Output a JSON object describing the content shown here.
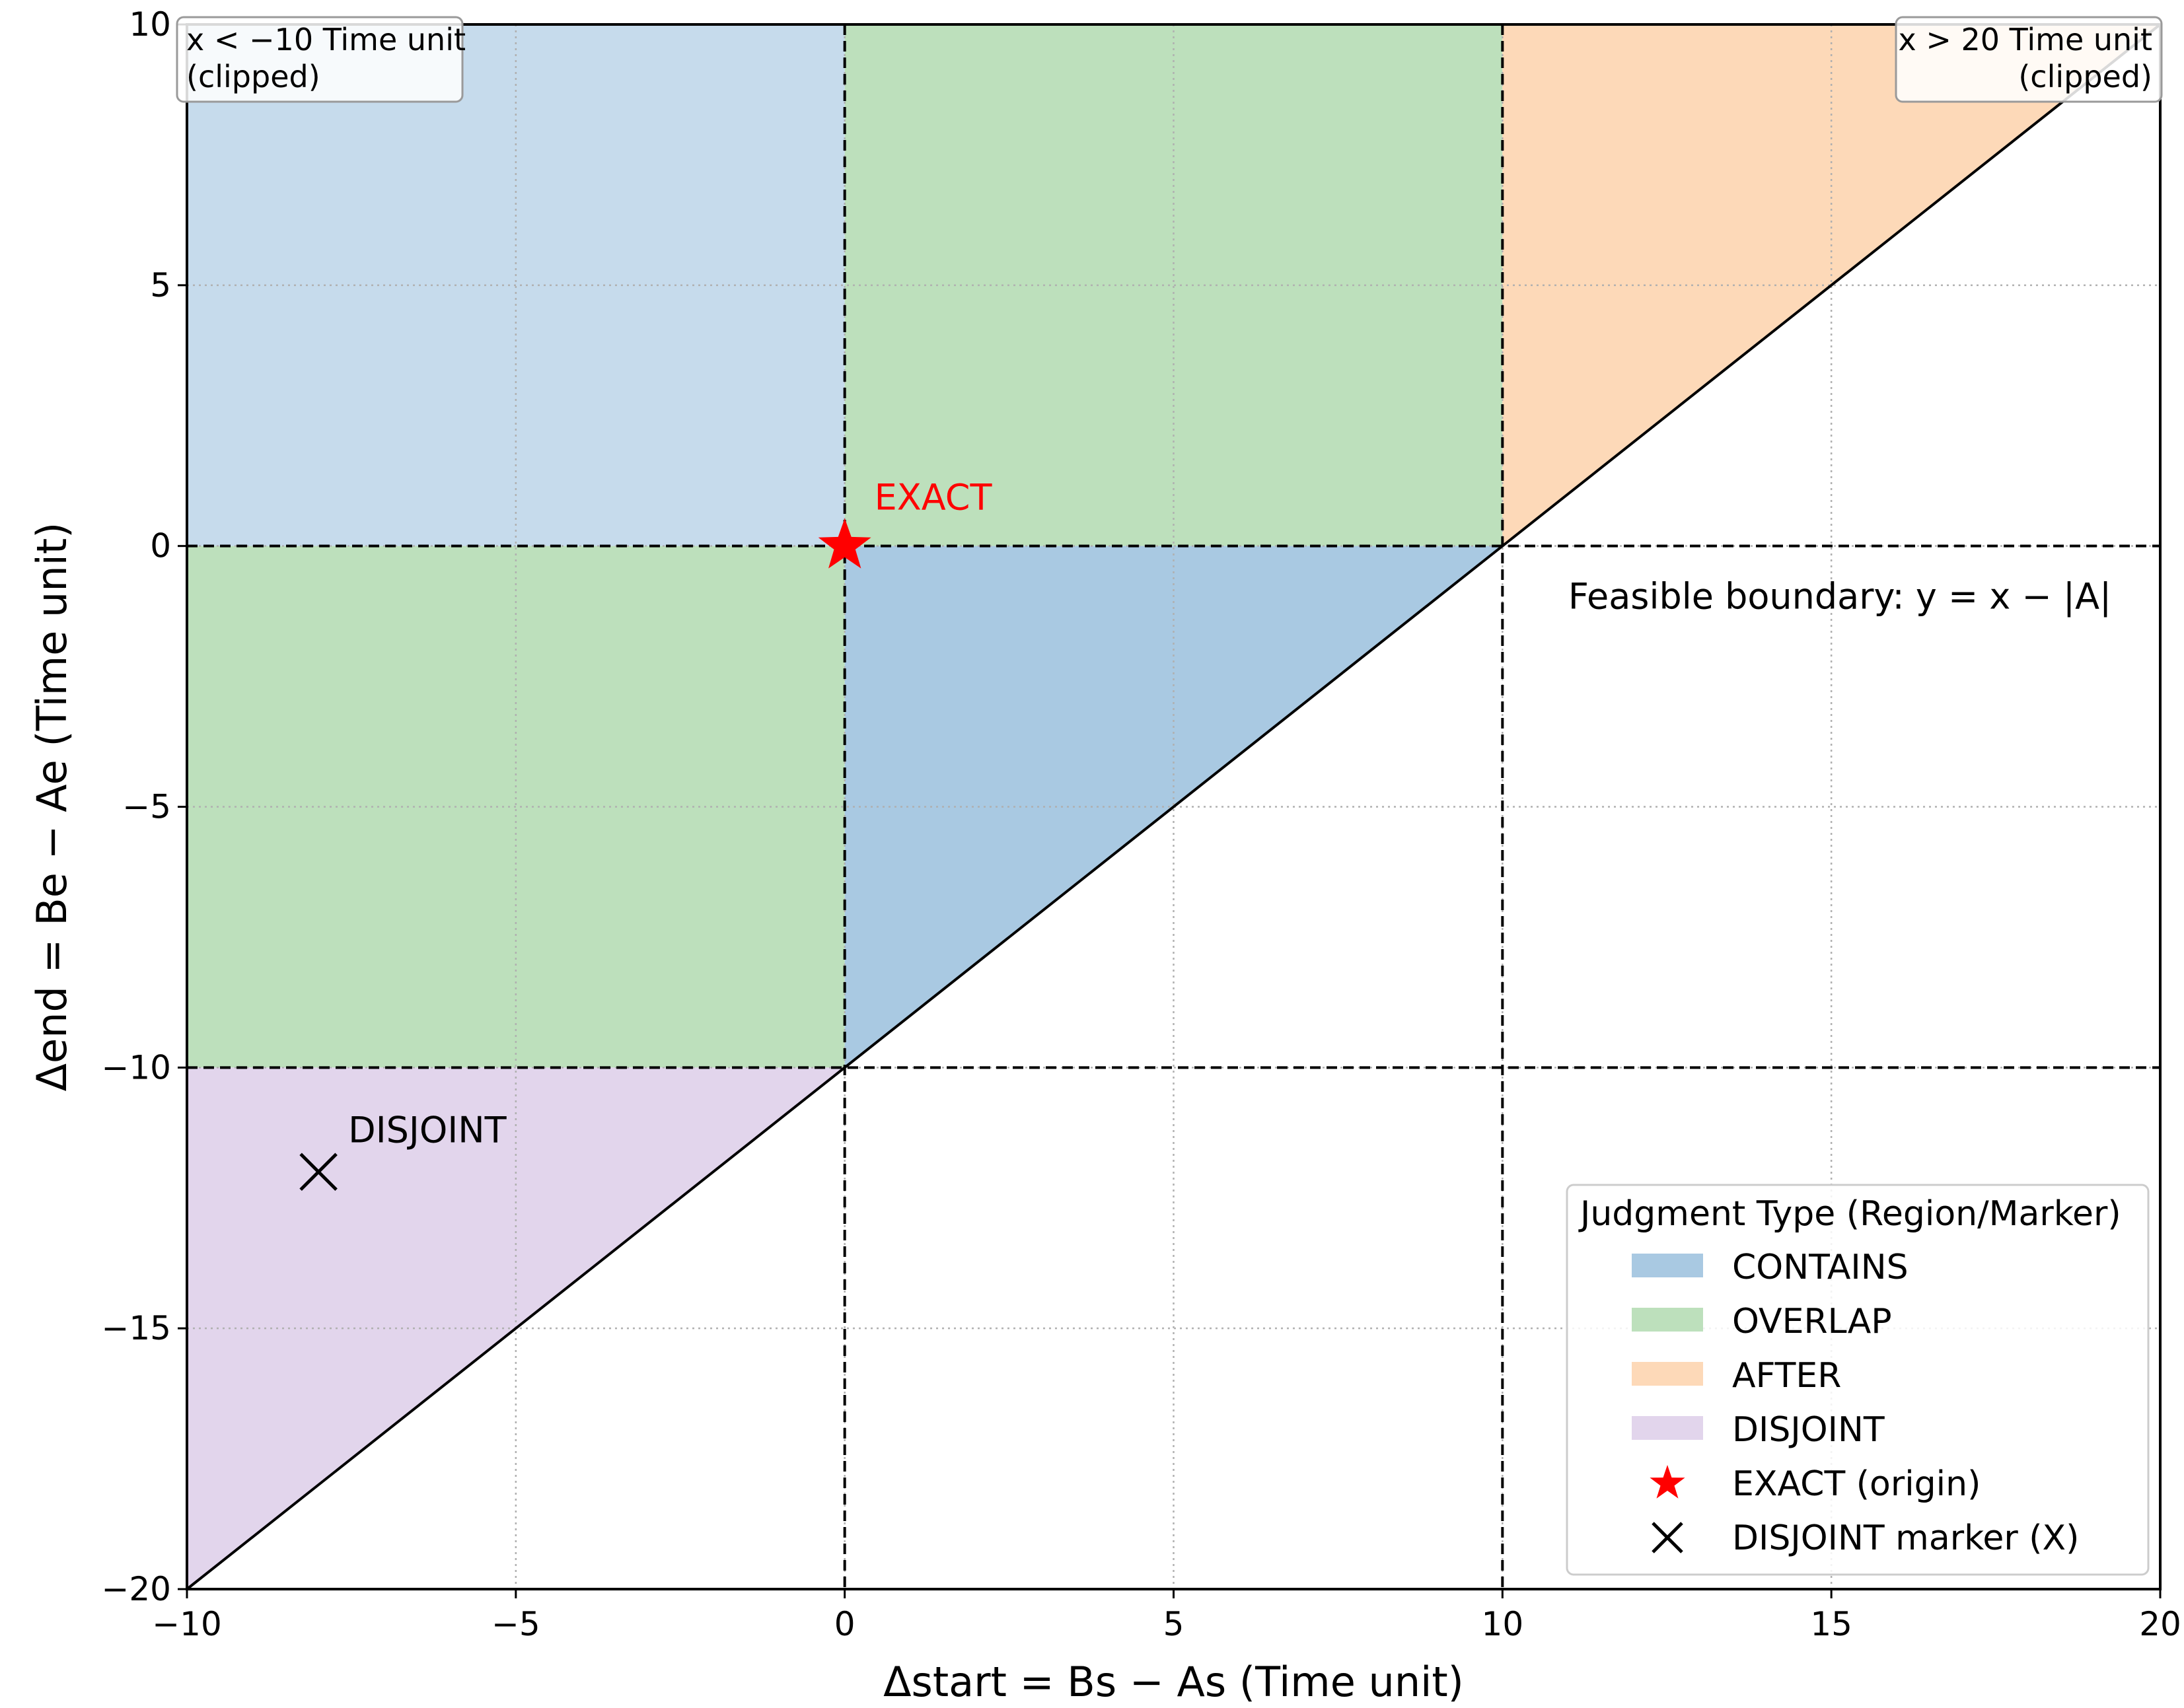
{
  "chart_data": {
    "type": "area",
    "xlabel": "Δstart = Bs − As  (Time unit)",
    "ylabel": "Δend   = Be − Ae  (Time unit)",
    "xlim": [
      -10,
      20
    ],
    "ylim": [
      -20,
      10
    ],
    "x_ticks": [
      "−10",
      "−5",
      "0",
      "5",
      "10",
      "15",
      "20"
    ],
    "y_ticks": [
      "−20",
      "−15",
      "−10",
      "−5",
      "0",
      "5",
      "10"
    ],
    "grid": true,
    "legend": {
      "title": "Judgment Type (Region/Marker)",
      "placement": "lower-right",
      "items": [
        "CONTAINS",
        "OVERLAP",
        "AFTER",
        "DISJOINT",
        "EXACT (origin)",
        "DISJOINT marker (X)"
      ]
    },
    "regions": [
      {
        "name": "CONTAINS",
        "color": "#c6dbec",
        "polygon": [
          [
            -10,
            0
          ],
          [
            0,
            0
          ],
          [
            0,
            10
          ],
          [
            -10,
            10
          ]
        ]
      },
      {
        "name": "OVERLAP",
        "color": "#bde0bc",
        "polygon": [
          [
            0,
            0
          ],
          [
            10,
            0
          ],
          [
            10,
            10
          ],
          [
            0,
            10
          ]
        ]
      },
      {
        "name": "OVERLAP",
        "color": "#bde0bc",
        "polygon": [
          [
            -10,
            -10
          ],
          [
            0,
            -10
          ],
          [
            0,
            0
          ],
          [
            -10,
            0
          ]
        ]
      },
      {
        "name": "CONTAINS",
        "color": "#a9c9e2",
        "polygon": [
          [
            0,
            -10
          ],
          [
            10,
            0
          ],
          [
            0,
            0
          ]
        ]
      },
      {
        "name": "AFTER",
        "color": "#fdd9b8",
        "polygon": [
          [
            10,
            0
          ],
          [
            20,
            10
          ],
          [
            10,
            10
          ]
        ]
      },
      {
        "name": "DISJOINT",
        "color": "#e2d5ec",
        "polygon": [
          [
            -10,
            -20
          ],
          [
            0,
            -10
          ],
          [
            -10,
            -10
          ]
        ]
      }
    ],
    "boundary_line": {
      "label": "Feasible boundary: y = x − |A|",
      "points": [
        [
          -10,
          -20
        ],
        [
          20,
          10
        ]
      ]
    },
    "dashed_lines": {
      "vertical_x": [
        0,
        10
      ],
      "horizontal_y": [
        0,
        -10
      ]
    },
    "points": [
      {
        "name": "EXACT",
        "x": 0,
        "y": 0,
        "marker": "star",
        "color": "#ff0000"
      },
      {
        "name": "DISJOINT",
        "x": -8,
        "y": -12,
        "marker": "x",
        "color": "#000000"
      }
    ],
    "corner_notes": [
      {
        "lines": [
          "x < −10 Time unit",
          "(clipped)"
        ],
        "placement": "top-left"
      },
      {
        "lines": [
          "x > 20 Time unit",
          "(clipped)"
        ],
        "placement": "top-right"
      }
    ]
  }
}
